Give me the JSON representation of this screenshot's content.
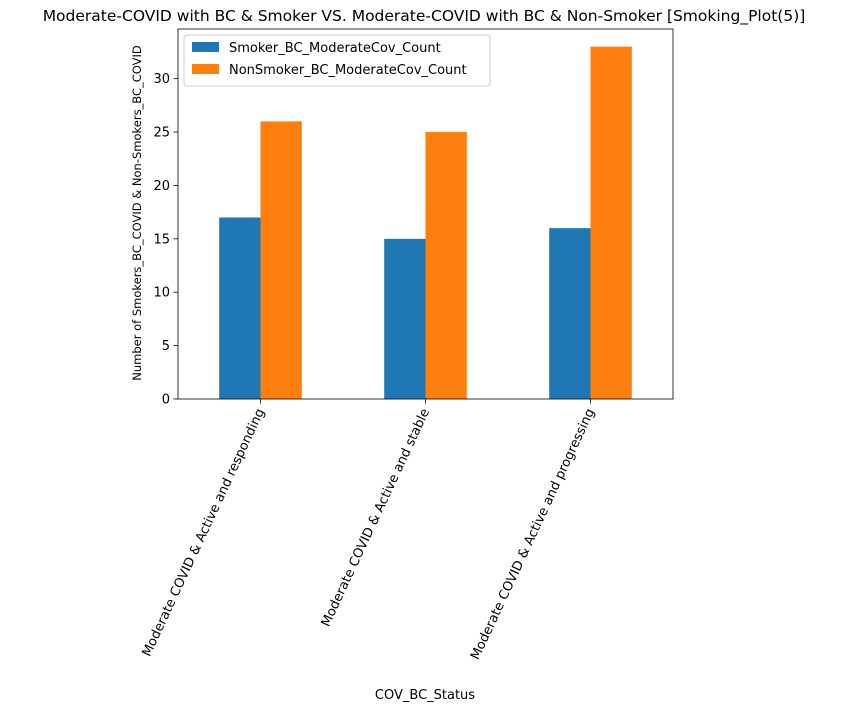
{
  "chart_data": {
    "type": "bar",
    "title": "Moderate-COVID with BC & Smoker VS. Moderate-COVID with BC & Non-Smoker   [Smoking_Plot(5)]",
    "xlabel": "COV_BC_Status",
    "ylabel": "Number of Smokers_BC_COVID & Non-Smokers_BC_COVID",
    "categories": [
      "Moderate COVID & Active and responding",
      "Moderate COVID &  Active and stable",
      "Moderate COVID & Active and progressing"
    ],
    "series": [
      {
        "name": "Smoker_BC_ModerateCov_Count",
        "color": "#1f77b4",
        "values": [
          17,
          15,
          16
        ]
      },
      {
        "name": "NonSmoker_BC_ModerateCov_Count",
        "color": "#ff7f0e",
        "values": [
          26,
          25,
          33
        ]
      }
    ],
    "ylim": [
      0,
      34.65
    ],
    "yticks": [
      0,
      5,
      10,
      15,
      20,
      25,
      30
    ],
    "grid": false,
    "legend_position": "top-left"
  }
}
